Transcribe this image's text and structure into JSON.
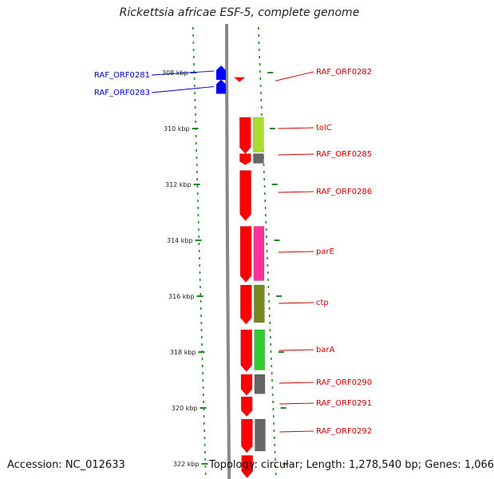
{
  "title": "Rickettsia africae ESF-5, complete genome",
  "footer": {
    "accession": "Accession: NC_012633",
    "topology": "Topology: circular; Length: 1,278,540 bp; Genes: 1,066"
  },
  "axis": {
    "unit": "kbp",
    "ticks": [
      "308 kbp",
      "310 kbp",
      "312 kbp",
      "314 kbp",
      "316 kbp",
      "318 kbp",
      "320 kbp",
      "322 kbp"
    ],
    "tick_values_kbp": [
      308,
      310,
      312,
      314,
      316,
      318,
      320,
      322
    ],
    "range_kbp": [
      306.5,
      322.5
    ]
  },
  "colors": {
    "cds": "#ff0000",
    "reverse_label": "#0000cc",
    "forward_label": "#cc0000",
    "backbone": "#888888",
    "scale_dots": "#228822"
  },
  "genes": [
    {
      "name": "RAF_ORF0281",
      "strand": "minus",
      "start_kbp": 307.8,
      "end_kbp": 308.2,
      "color": "#0000ff",
      "side": "left"
    },
    {
      "name": "RAF_ORF0283",
      "strand": "minus",
      "start_kbp": 308.3,
      "end_kbp": 308.7,
      "color": "#0000ff",
      "side": "left"
    },
    {
      "name": "RAF_ORF0282",
      "strand": "plus",
      "start_kbp": 308.05,
      "end_kbp": 308.25,
      "color": "#ff0000",
      "side": "right"
    },
    {
      "name": "tolC",
      "strand": "plus",
      "start_kbp": 309.6,
      "end_kbp": 310.9,
      "color": "#aadd33",
      "side": "right"
    },
    {
      "name": "RAF_ORF0285",
      "strand": "plus",
      "start_kbp": 310.9,
      "end_kbp": 311.3,
      "color": "#666666",
      "side": "right"
    },
    {
      "name": "RAF_ORF0286",
      "strand": "plus",
      "start_kbp": 311.5,
      "end_kbp": 313.3,
      "color": "#ff0000",
      "side": "right"
    },
    {
      "name": "parE",
      "strand": "plus",
      "start_kbp": 313.5,
      "end_kbp": 315.5,
      "color": "#ff3399",
      "side": "right"
    },
    {
      "name": "ctp",
      "strand": "plus",
      "start_kbp": 315.6,
      "end_kbp": 317.0,
      "color": "#778822",
      "side": "right"
    },
    {
      "name": "barA",
      "strand": "plus",
      "start_kbp": 317.2,
      "end_kbp": 318.7,
      "color": "#33cc33",
      "side": "right"
    },
    {
      "name": "RAF_ORF0290",
      "strand": "plus",
      "start_kbp": 318.8,
      "end_kbp": 319.55,
      "color": "#666666",
      "side": "right"
    },
    {
      "name": "RAF_ORF0291",
      "strand": "plus",
      "start_kbp": 319.6,
      "end_kbp": 320.3,
      "color": "#ff0000",
      "side": "right"
    },
    {
      "name": "RAF_ORF0292",
      "strand": "plus",
      "start_kbp": 320.4,
      "end_kbp": 321.6,
      "color": "#666666",
      "side": "right"
    },
    {
      "name": "",
      "strand": "plus",
      "start_kbp": 321.7,
      "end_kbp": 322.5,
      "color": "#ff0000",
      "side": "right"
    }
  ]
}
